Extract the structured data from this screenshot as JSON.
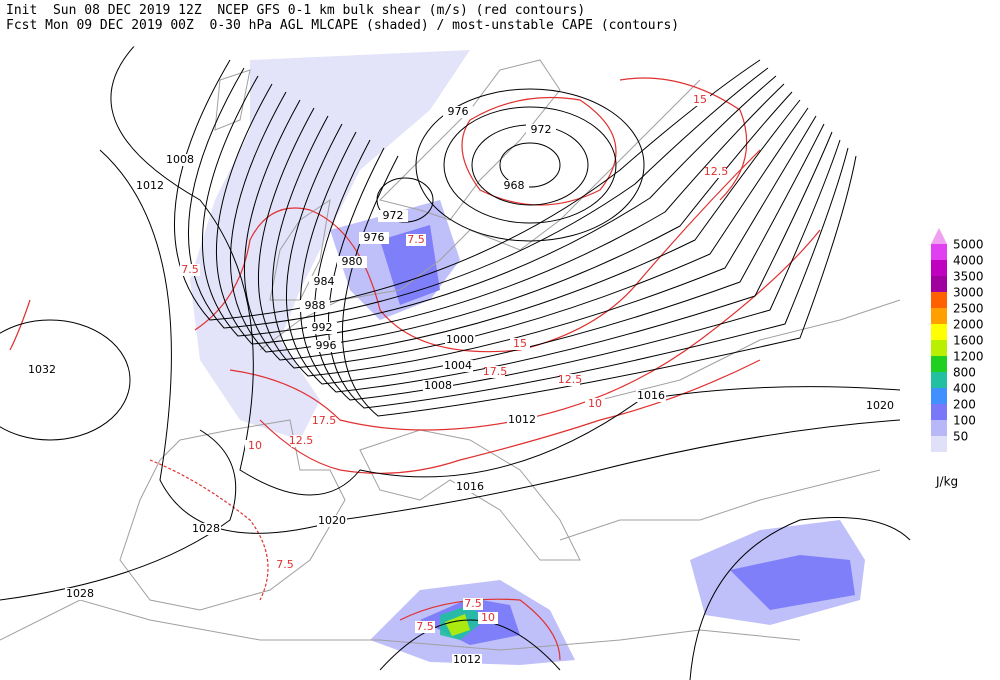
{
  "header": {
    "line1": "Init  Sun 08 DEC 2019 12Z  NCEP GFS 0-1 km bulk shear (m/s) (red contours)",
    "line2": "Fcst Mon 09 DEC 2019 00Z  0-30 hPa AGL MLCAPE (shaded) / most-unstable CAPE (contours)"
  },
  "colorbar": {
    "units": "J/kg",
    "top_color": "#f0a0f0",
    "levels": [
      {
        "label": "5000",
        "color": "#e040f0"
      },
      {
        "label": "4000",
        "color": "#c000c0"
      },
      {
        "label": "3500",
        "color": "#a000a0"
      },
      {
        "label": "3000",
        "color": "#ff6000"
      },
      {
        "label": "2500",
        "color": "#ffa000"
      },
      {
        "label": "2000",
        "color": "#ffff00"
      },
      {
        "label": "1600",
        "color": "#b8f000"
      },
      {
        "label": "1200",
        "color": "#20d020"
      },
      {
        "label": "800",
        "color": "#20c0a0"
      },
      {
        "label": "400",
        "color": "#4090ff"
      },
      {
        "label": "200",
        "color": "#7878f8"
      },
      {
        "label": "100",
        "color": "#b8b8f8"
      },
      {
        "label": "50",
        "color": "#e0e0f8"
      }
    ]
  },
  "isobar_labels": [
    "1008",
    "1012",
    "976",
    "972",
    "968",
    "972",
    "976",
    "980",
    "984",
    "988",
    "992",
    "996",
    "1000",
    "1004",
    "1008",
    "1012",
    "1016",
    "1016",
    "1020",
    "1020",
    "1028",
    "1028",
    "1032",
    "1012"
  ],
  "shear_labels": [
    "7.5",
    "7.5",
    "10",
    "7.5",
    "12.5",
    "17.5",
    "15",
    "12.5",
    "15",
    "17.5",
    "12.5",
    "10",
    "7.5",
    "7.5",
    "10"
  ]
}
